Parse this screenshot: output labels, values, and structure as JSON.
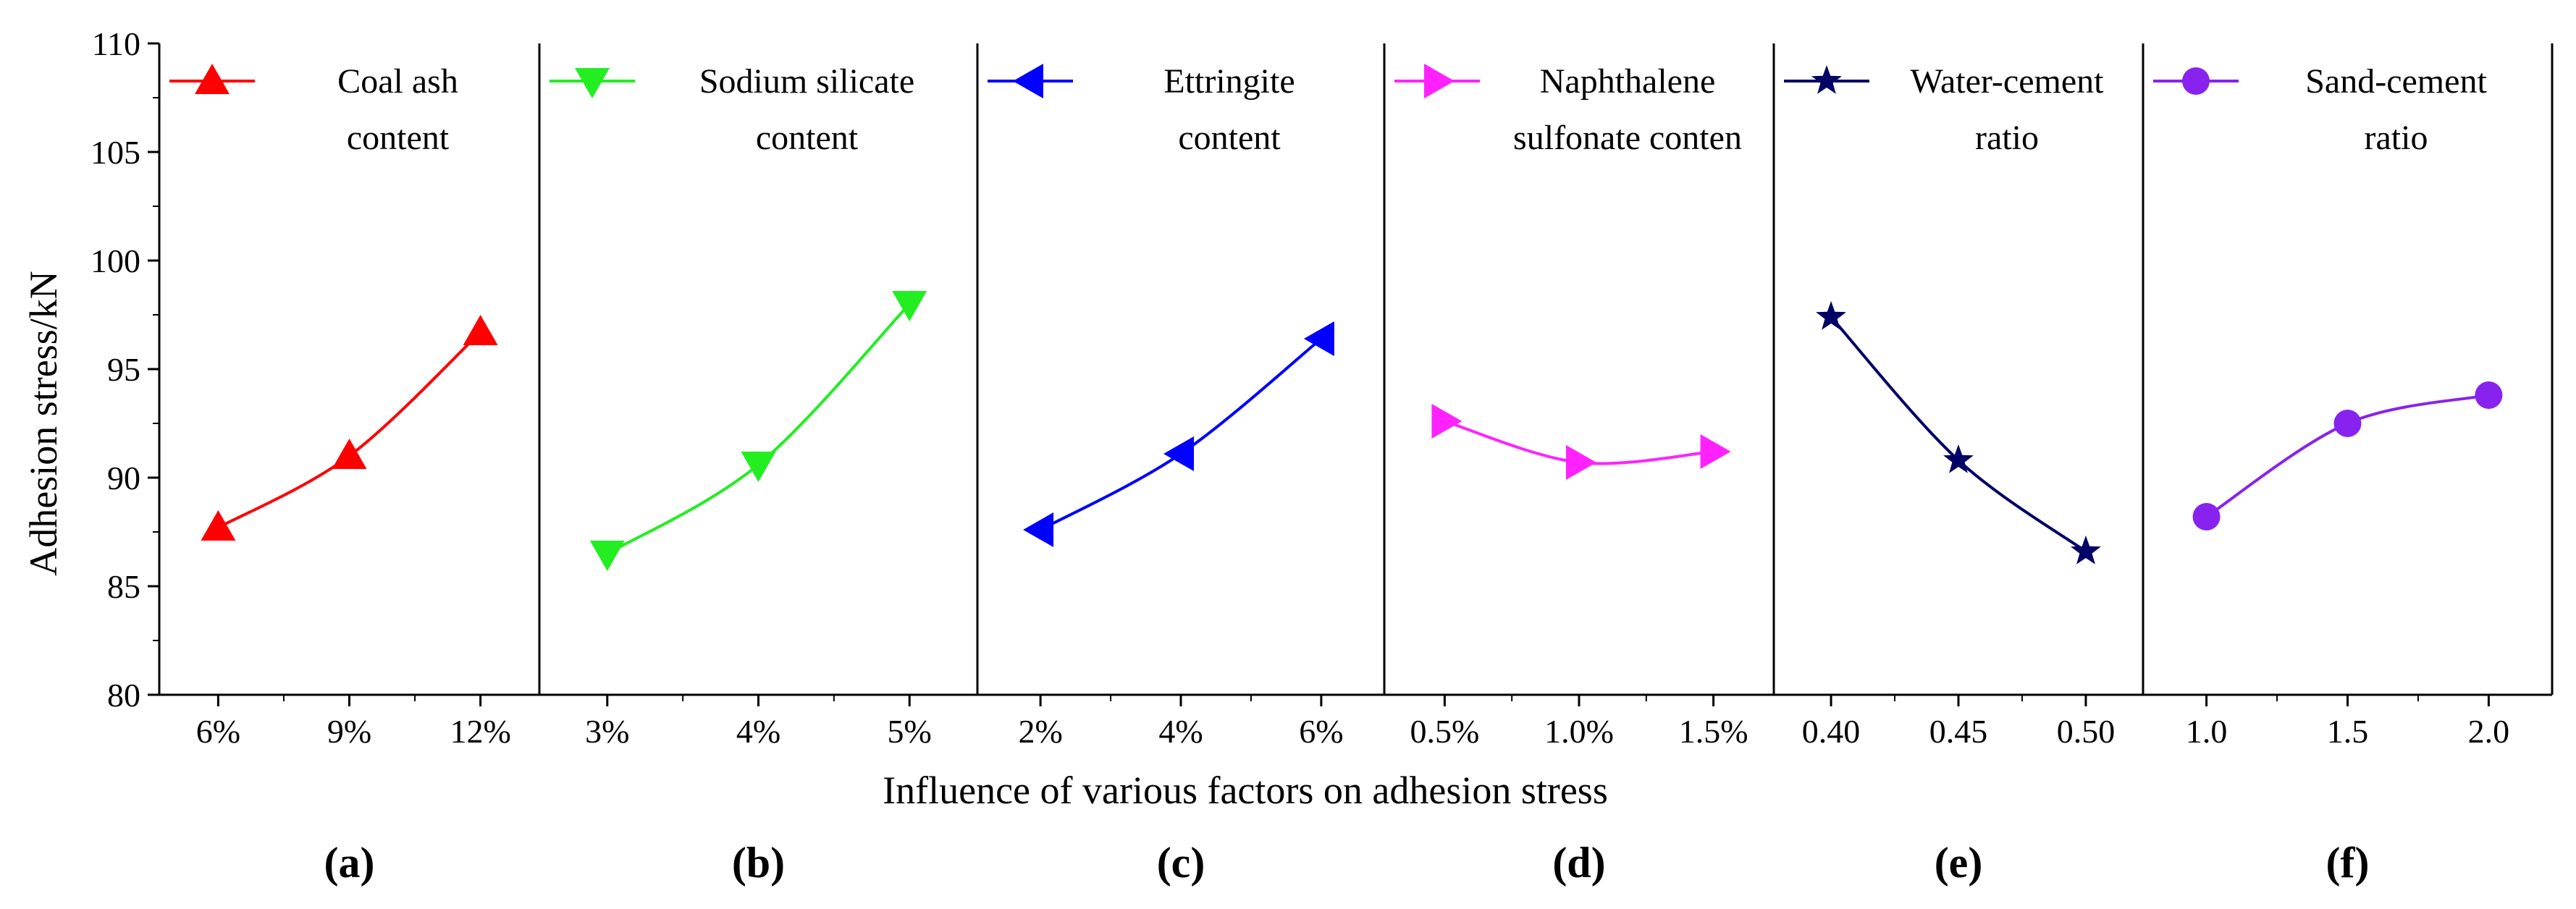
{
  "chart_data": {
    "type": "line",
    "ylabel": "Adhesion stress/kN",
    "xlabel": "Influence of various factors on adhesion stress",
    "ylim": [
      80,
      110
    ],
    "yticks": [
      "80",
      "85",
      "90",
      "95",
      "100",
      "105",
      "110"
    ],
    "panels": [
      {
        "label": "(a)",
        "legend": [
          "Coal ash",
          "content"
        ],
        "categories": [
          "6%",
          "9%",
          "12%"
        ],
        "values": [
          87.7,
          91.0,
          96.7
        ],
        "color": "#ff0000",
        "marker": "triangle-up"
      },
      {
        "label": "(b)",
        "legend": [
          "Sodium silicate",
          "content"
        ],
        "categories": [
          "3%",
          "4%",
          "5%"
        ],
        "values": [
          86.5,
          90.6,
          98.0
        ],
        "color": "#22ee22",
        "marker": "triangle-down"
      },
      {
        "label": "(c)",
        "legend": [
          "Ettringite",
          "content"
        ],
        "categories": [
          "2%",
          "4%",
          "6%"
        ],
        "values": [
          87.6,
          91.1,
          96.4
        ],
        "color": "#0000ff",
        "marker": "triangle-left"
      },
      {
        "label": "(d)",
        "legend": [
          "Naphthalene",
          "sulfonate conten"
        ],
        "categories": [
          "0.5%",
          "1.0%",
          "1.5%"
        ],
        "values": [
          92.6,
          90.7,
          91.2
        ],
        "color": "#ff22ff",
        "marker": "triangle-right"
      },
      {
        "label": "(e)",
        "legend": [
          "Water-cement",
          "ratio"
        ],
        "categories": [
          "0.40",
          "0.45",
          "0.50"
        ],
        "values": [
          97.4,
          90.8,
          86.6
        ],
        "color": "#000066",
        "marker": "star"
      },
      {
        "label": "(f)",
        "legend": [
          "Sand-cement",
          "ratio"
        ],
        "categories": [
          "1.0",
          "1.5",
          "2.0"
        ],
        "values": [
          88.2,
          92.5,
          93.8
        ],
        "color": "#8822ee",
        "marker": "circle"
      }
    ]
  }
}
